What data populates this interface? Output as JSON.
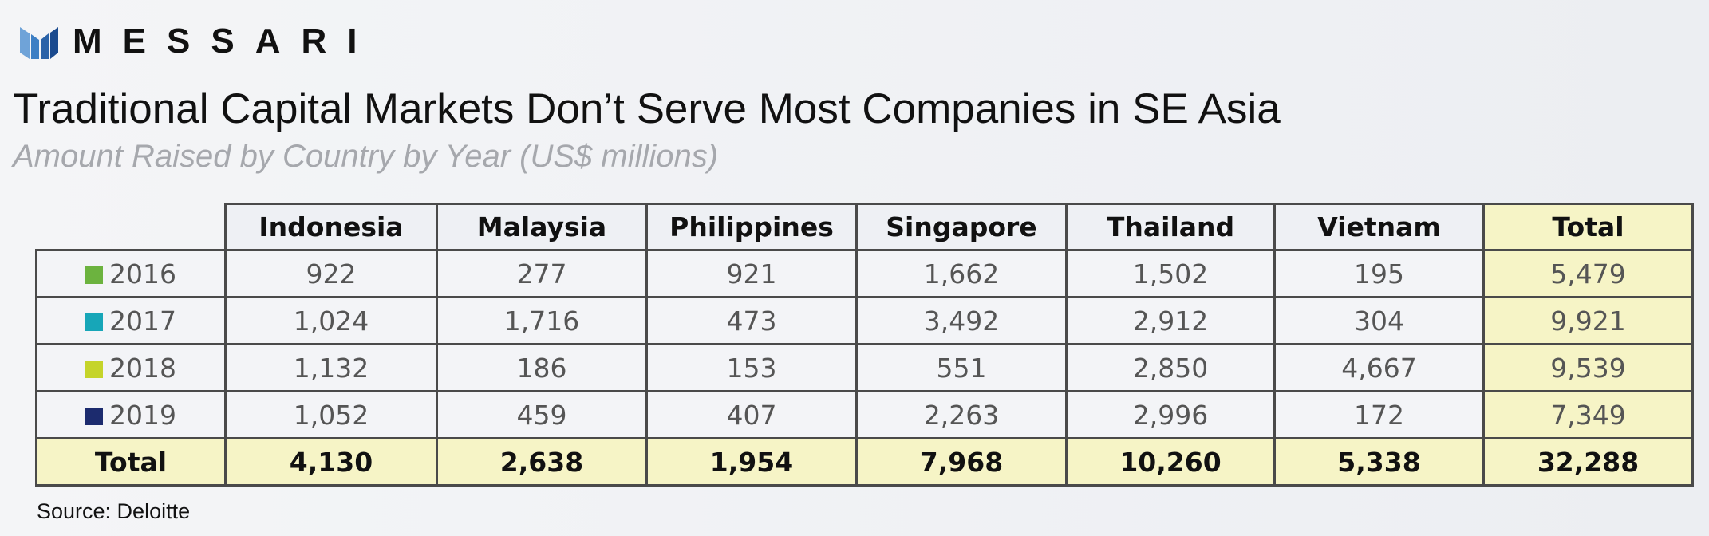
{
  "header": {
    "logo": "MESSARI",
    "title": "Traditional Capital Markets Don’t Serve Most Companies in SE Asia",
    "subtitle": "Amount Raised by Country by Year (US$ millions)"
  },
  "table": {
    "columns": [
      "Indonesia",
      "Malaysia",
      "Philippines",
      "Singapore",
      "Thailand",
      "Vietnam",
      "Total"
    ],
    "rows": [
      {
        "label": "2016",
        "color": "#6cb33f",
        "cells": [
          "922",
          "277",
          "921",
          "1,662",
          "1,502",
          "195",
          "5,479"
        ]
      },
      {
        "label": "2017",
        "color": "#17a6b8",
        "cells": [
          "1,024",
          "1,716",
          "473",
          "3,492",
          "2,912",
          "304",
          "9,921"
        ]
      },
      {
        "label": "2018",
        "color": "#c5d42a",
        "cells": [
          "1,132",
          "186",
          "153",
          "551",
          "2,850",
          "4,667",
          "9,539"
        ]
      },
      {
        "label": "2019",
        "color": "#1c2b6e",
        "cells": [
          "1,052",
          "459",
          "407",
          "2,263",
          "2,996",
          "172",
          "7,349"
        ]
      }
    ],
    "total": {
      "label": "Total",
      "cells": [
        "4,130",
        "2,638",
        "1,954",
        "7,968",
        "10,260",
        "5,338",
        "32,288"
      ]
    }
  },
  "source": "Source: Deloitte"
}
